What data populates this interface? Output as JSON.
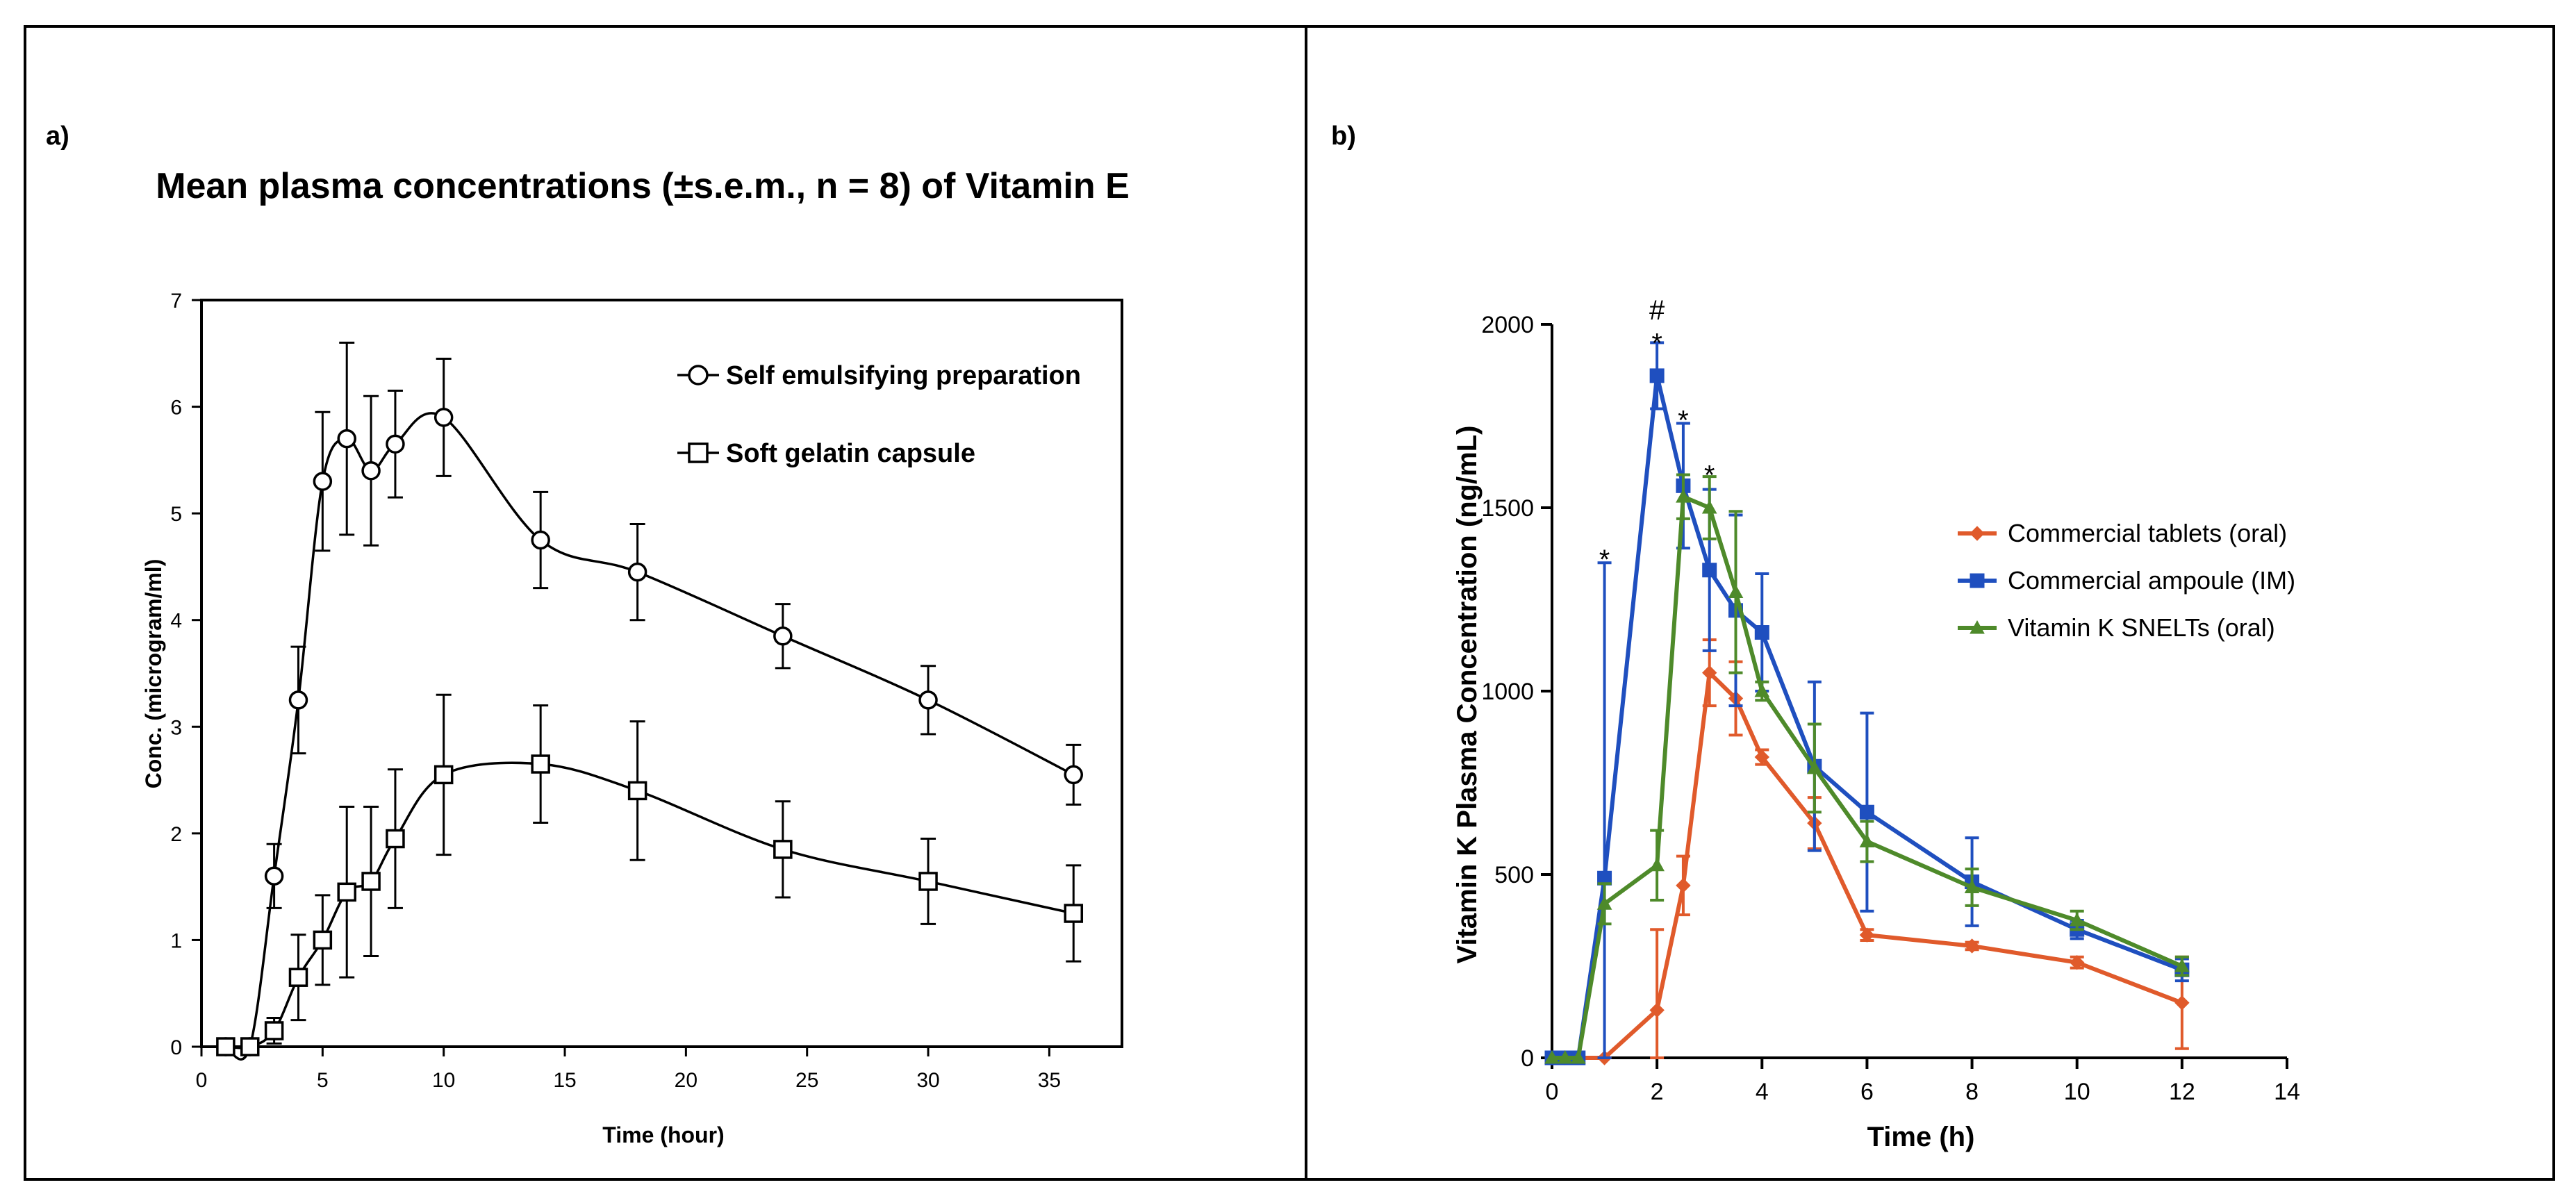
{
  "panels": {
    "a_label": "a)",
    "b_label": "b)"
  },
  "chart_data": [
    {
      "type": "line",
      "title": "Mean plasma concentrations (±s.e.m., n = 8) of Vitamin E",
      "xlabel": "Time (hour)",
      "ylabel": "Conc. (microgram/ml)",
      "xlim": [
        0,
        38
      ],
      "ylim": [
        0,
        7
      ],
      "xticks": [
        0,
        5,
        10,
        15,
        20,
        25,
        30,
        35
      ],
      "yticks": [
        0,
        1,
        2,
        3,
        4,
        5,
        6,
        7
      ],
      "legend_position": "top-right",
      "series": [
        {
          "name": "Self emulsifying preparation",
          "marker": "circle",
          "x": [
            1,
            2,
            3,
            4,
            5,
            6,
            7,
            8,
            10,
            14,
            18,
            24,
            30,
            36
          ],
          "y": [
            0,
            0,
            1.6,
            3.25,
            5.3,
            5.7,
            5.4,
            5.65,
            5.9,
            4.75,
            4.45,
            3.85,
            3.25,
            2.55
          ],
          "err": [
            0,
            0,
            0.3,
            0.5,
            0.65,
            0.9,
            0.7,
            0.5,
            0.55,
            0.45,
            0.45,
            0.3,
            0.32,
            0.28
          ]
        },
        {
          "name": "Soft gelatin capsule",
          "marker": "square",
          "x": [
            1,
            2,
            3,
            4,
            5,
            6,
            7,
            8,
            10,
            14,
            18,
            24,
            30,
            36
          ],
          "y": [
            0,
            0,
            0.15,
            0.65,
            1.0,
            1.45,
            1.55,
            1.95,
            2.55,
            2.65,
            2.4,
            1.85,
            1.55,
            1.25
          ],
          "err": [
            0,
            0,
            0.12,
            0.4,
            0.42,
            0.8,
            0.7,
            0.65,
            0.75,
            0.55,
            0.65,
            0.45,
            0.4,
            0.45
          ]
        }
      ]
    },
    {
      "type": "line",
      "title": "",
      "xlabel": "Time (h)",
      "ylabel": "Vitamin K Plasma Concentration (ng/mL)",
      "xlim": [
        0,
        14
      ],
      "ylim": [
        0,
        2000
      ],
      "xticks": [
        0,
        2,
        4,
        6,
        8,
        10,
        12,
        14
      ],
      "yticks": [
        0,
        500,
        1000,
        1500,
        2000
      ],
      "legend_position": "center-right",
      "annotations": [
        {
          "x": 1,
          "y": 1360,
          "text": "*"
        },
        {
          "x": 2,
          "y": 1950,
          "text": "*"
        },
        {
          "x": 2,
          "y": 2040,
          "text": "#"
        },
        {
          "x": 2.5,
          "y": 1740,
          "text": "*"
        },
        {
          "x": 3,
          "y": 1590,
          "text": "*"
        }
      ],
      "series": [
        {
          "name": "Commercial tablets (oral)",
          "color": "#e05a2b",
          "marker": "diamond",
          "x": [
            0,
            0.25,
            0.5,
            1,
            2,
            2.5,
            3,
            3.5,
            4,
            5,
            6,
            8,
            10,
            12
          ],
          "y": [
            0,
            0,
            0,
            0,
            130,
            470,
            1050,
            980,
            820,
            640,
            335,
            305,
            260,
            150
          ],
          "err": [
            0,
            0,
            0,
            0,
            220,
            80,
            90,
            100,
            20,
            70,
            15,
            10,
            15,
            125
          ]
        },
        {
          "name": "Commercial ampoule (IM)",
          "color": "#1f4fbf",
          "marker": "square",
          "x": [
            0,
            0.25,
            0.5,
            1,
            2,
            2.5,
            3,
            3.5,
            4,
            5,
            6,
            8,
            10,
            12
          ],
          "y": [
            0,
            0,
            0,
            490,
            1860,
            1560,
            1330,
            1220,
            1160,
            795,
            670,
            480,
            350,
            240
          ],
          "err": [
            0,
            0,
            0,
            860,
            90,
            170,
            220,
            260,
            160,
            230,
            270,
            120,
            25,
            30
          ]
        },
        {
          "name": "Vitamin K SNELTs (oral)",
          "color": "#4e8a2a",
          "marker": "triangle",
          "x": [
            0,
            0.25,
            0.5,
            1,
            2,
            2.5,
            3,
            3.5,
            4,
            5,
            6,
            8,
            10,
            12
          ],
          "y": [
            0,
            0,
            0,
            420,
            525,
            1530,
            1500,
            1270,
            1000,
            790,
            590,
            465,
            375,
            250
          ],
          "err": [
            0,
            0,
            0,
            55,
            95,
            60,
            85,
            220,
            25,
            120,
            55,
            50,
            25,
            25
          ]
        }
      ]
    }
  ]
}
